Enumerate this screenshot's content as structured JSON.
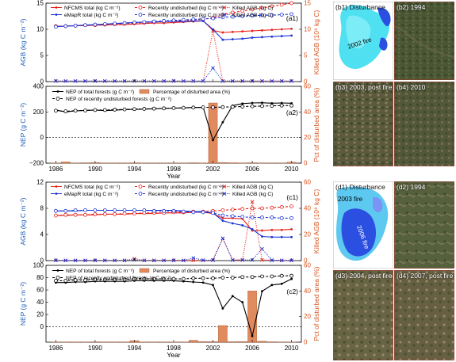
{
  "colors": {
    "nfcms": "#e8211b",
    "emapr": "#1b34d6",
    "nep": "#000000",
    "bar": "#e08a5d",
    "bar_edge": "#a8532b",
    "left_axis": "#1f5fb8",
    "right_axis": "#d9541e",
    "veg_dark": "#3d4a2c",
    "veg_light": "#7a7a55",
    "disturb_cyan": "#4fe0f2",
    "disturb_blue": "#2b4fe0",
    "edge_red": "#c0302a"
  },
  "chart_data": [
    {
      "id": "a1",
      "type": "line",
      "panel_label": "(a1)",
      "ylabel": "AGB (kg C m⁻²)",
      "ylabel_right": "Killed AGB (10⁹ kg C)",
      "xlim": [
        1985,
        2011
      ],
      "ylim": [
        0,
        15
      ],
      "yticks": [
        0,
        5,
        10,
        15
      ],
      "ylim_right": [
        0,
        15
      ],
      "yticks_right": [
        0,
        5,
        10,
        15
      ],
      "x": [
        1986,
        1987,
        1988,
        1989,
        1990,
        1991,
        1992,
        1993,
        1994,
        1995,
        1996,
        1997,
        1998,
        1999,
        2000,
        2001,
        2002,
        2003,
        2004,
        2005,
        2006,
        2007,
        2008,
        2009,
        2010
      ],
      "legend": [
        "NFCMS total (kg C m⁻²)",
        "Recently undisturbed (kg C m⁻²)",
        "Killed AGB (kg C)",
        "eMapR total (kg C m⁻²)",
        "Recently undisturbed (kg C m⁻²)",
        "Killed AGB (kg C)"
      ],
      "series": [
        {
          "name": "NFCMS total (kg C m⁻²)",
          "style": "solid",
          "color": "nfcms",
          "marker": "dot",
          "axis": "left",
          "values": [
            10.6,
            10.6,
            10.7,
            10.7,
            10.8,
            10.8,
            10.9,
            10.9,
            11.0,
            11.1,
            11.2,
            11.2,
            11.3,
            11.4,
            11.5,
            11.6,
            9.8,
            9.4,
            9.5,
            9.6,
            9.7,
            9.8,
            9.9,
            10.0,
            10.1
          ]
        },
        {
          "name": "Recently undisturbed (kg C m⁻²)",
          "style": "dashed",
          "color": "nfcms",
          "marker": "circle",
          "axis": "left",
          "values": [
            10.6,
            10.6,
            10.7,
            10.8,
            10.8,
            10.9,
            11.0,
            11.1,
            11.2,
            11.3,
            11.4,
            11.5,
            11.6,
            11.7,
            11.8,
            11.9,
            12.2,
            12.8,
            13.2,
            13.5,
            13.8,
            14.1,
            14.4,
            14.7,
            15.0
          ]
        },
        {
          "name": "Killed AGB (kg C)",
          "style": "dotted",
          "color": "nfcms",
          "marker": "x",
          "axis": "right",
          "values": [
            0.1,
            0.1,
            0.1,
            0.1,
            0.1,
            0.1,
            0.1,
            0.1,
            0.1,
            0.1,
            0.1,
            0.1,
            0.1,
            0.1,
            0.1,
            0.1,
            9.7,
            0.1,
            0.1,
            0.1,
            0.1,
            0.1,
            0.1,
            0.1,
            0.1
          ]
        },
        {
          "name": "eMapR total (kg C m⁻²)",
          "style": "solid",
          "color": "emapr",
          "marker": "dot",
          "axis": "left",
          "values": [
            10.5,
            10.6,
            10.7,
            10.8,
            10.9,
            11.0,
            11.1,
            11.2,
            11.3,
            11.4,
            11.4,
            11.5,
            11.5,
            11.5,
            11.6,
            11.6,
            10.0,
            8.0,
            8.1,
            8.2,
            8.4,
            8.5,
            8.6,
            8.7,
            8.8
          ]
        },
        {
          "name": "Recently undisturbed (kg C m⁻²)",
          "style": "dashed",
          "color": "emapr",
          "marker": "circle",
          "axis": "left",
          "values": [
            10.5,
            10.6,
            10.7,
            10.8,
            10.9,
            11.0,
            11.1,
            11.2,
            11.3,
            11.4,
            11.5,
            11.6,
            11.7,
            11.8,
            11.9,
            12.0,
            12.1,
            12.3,
            12.4,
            12.5,
            12.6,
            12.7,
            12.7,
            12.8,
            12.9
          ]
        },
        {
          "name": "Killed AGB (kg C)",
          "style": "dotted",
          "color": "emapr",
          "marker": "x",
          "axis": "right",
          "values": [
            0.1,
            0.1,
            0.1,
            0.1,
            0.1,
            0.1,
            0.1,
            0.1,
            0.1,
            0.1,
            0.1,
            0.1,
            0.1,
            0.1,
            0.1,
            0.1,
            2.6,
            0.1,
            0.1,
            0.1,
            0.1,
            0.1,
            0.1,
            0.1,
            0.1
          ]
        }
      ]
    },
    {
      "id": "a2",
      "type": "line",
      "panel_label": "(a2)",
      "ylabel": "NEP (g C m⁻²)",
      "ylabel_right": "Pct of disturbed area (%)",
      "xlim": [
        1985,
        2011
      ],
      "ylim": [
        -200,
        400
      ],
      "yticks": [
        -200,
        0,
        200,
        400
      ],
      "ylim_right": [
        0,
        60
      ],
      "yticks_right": [
        0,
        20,
        40,
        60
      ],
      "xlabel": "Year",
      "xticks": [
        1986,
        1990,
        1994,
        1998,
        2002,
        2006,
        2010
      ],
      "legend": [
        "NEP of total forests (g C m⁻²)",
        "Percentage of disturbed area (%)",
        "NEP of recently undisturbed forests (g C m⁻²)"
      ],
      "x": [
        1986,
        1987,
        1988,
        1989,
        1990,
        1991,
        1992,
        1993,
        1994,
        1995,
        1996,
        1997,
        1998,
        1999,
        2000,
        2001,
        2002,
        2003,
        2004,
        2005,
        2006,
        2007,
        2008,
        2009,
        2010
      ],
      "bars": {
        "name": "Percentage of disturbed area (%)",
        "axis": "right",
        "values": [
          0.2,
          1.0,
          0.2,
          0.3,
          0.5,
          0.2,
          0.2,
          0.2,
          0.3,
          0.2,
          0.2,
          0.2,
          0.2,
          0.2,
          0.3,
          0.2,
          47,
          0.5,
          0.3,
          0.2,
          0.3,
          0.2,
          0.2,
          0.2,
          0.8
        ]
      },
      "series": [
        {
          "name": "NEP of total forests (g C m⁻²)",
          "style": "solid",
          "color": "nep",
          "marker": "dot",
          "axis": "left",
          "values": [
            215,
            200,
            208,
            212,
            215,
            210,
            214,
            218,
            220,
            222,
            225,
            228,
            230,
            232,
            235,
            236,
            -20,
            120,
            250,
            265,
            270,
            272,
            268,
            270,
            268
          ]
        },
        {
          "name": "NEP of recently undisturbed forests (g C m⁻²)",
          "style": "dashed",
          "color": "nep",
          "marker": "circle",
          "axis": "left",
          "values": [
            210,
            205,
            210,
            212,
            215,
            215,
            218,
            220,
            222,
            224,
            226,
            228,
            230,
            232,
            234,
            236,
            236,
            238,
            240,
            242,
            244,
            246,
            248,
            250,
            250
          ]
        }
      ]
    },
    {
      "id": "c1",
      "type": "line",
      "panel_label": "(c1)",
      "ylabel": "AGB (kg C m⁻²)",
      "ylabel_right": "Killed AGB (10⁸ kg C)",
      "xlim": [
        1985,
        2011
      ],
      "ylim": [
        0,
        12
      ],
      "yticks": [
        0,
        4,
        8,
        12
      ],
      "ylim_right": [
        0,
        60
      ],
      "yticks_right": [
        0,
        20,
        40,
        60
      ],
      "x": [
        1986,
        1987,
        1988,
        1989,
        1990,
        1991,
        1992,
        1993,
        1994,
        1995,
        1996,
        1997,
        1998,
        1999,
        2000,
        2001,
        2002,
        2003,
        2004,
        2005,
        2006,
        2007,
        2008,
        2009,
        2010
      ],
      "legend": [
        "NFCMS total (kg C m⁻²)",
        "Recently undisturbed (kg C m⁻²)",
        "Killed AGB (kg C)",
        "eMapR total (kg C m⁻²)",
        "Recently undisturbed (kg C m⁻²)",
        "Killed AGB (kg C)"
      ],
      "series": [
        {
          "name": "NFCMS total (kg C m⁻²)",
          "style": "solid",
          "color": "nfcms",
          "marker": "dot",
          "axis": "left",
          "values": [
            6.9,
            6.9,
            7.0,
            7.0,
            7.0,
            7.1,
            7.1,
            7.1,
            7.2,
            7.2,
            7.2,
            7.3,
            7.3,
            7.3,
            7.4,
            7.4,
            7.2,
            6.5,
            6.5,
            6.4,
            4.6,
            4.6,
            4.7,
            4.7,
            4.8
          ]
        },
        {
          "name": "Recently undisturbed (kg C m⁻²)",
          "style": "dashed",
          "color": "nfcms",
          "marker": "circle",
          "axis": "left",
          "values": [
            6.9,
            7.0,
            7.0,
            7.0,
            7.1,
            7.1,
            7.1,
            7.2,
            7.2,
            7.3,
            7.3,
            7.3,
            7.4,
            7.4,
            7.5,
            7.5,
            7.6,
            7.7,
            7.8,
            7.9,
            8.0,
            8.0,
            8.1,
            8.2,
            8.3
          ]
        },
        {
          "name": "Killed AGB (kg C)",
          "style": "dotted",
          "color": "nfcms",
          "marker": "x",
          "axis": "right",
          "values": [
            0.2,
            0.2,
            0.2,
            0.2,
            0.2,
            0.2,
            0.2,
            0.2,
            1.5,
            0.2,
            0.2,
            0.2,
            0.2,
            0.2,
            0.2,
            0.2,
            0.5,
            17,
            0.5,
            0.5,
            45,
            0.5,
            0.3,
            0.2,
            0.2
          ]
        },
        {
          "name": "eMapR total (kg C m⁻²)",
          "style": "solid",
          "color": "emapr",
          "marker": "dot",
          "axis": "left",
          "values": [
            7.6,
            7.6,
            7.6,
            7.7,
            7.7,
            7.7,
            7.7,
            7.7,
            7.7,
            7.7,
            7.7,
            7.7,
            7.7,
            7.6,
            7.5,
            7.5,
            7.3,
            6.1,
            5.7,
            5.4,
            4.8,
            3.7,
            3.6,
            3.6,
            3.6
          ]
        },
        {
          "name": "Recently undisturbed (kg C m⁻²)",
          "style": "dashed",
          "color": "emapr",
          "marker": "circle",
          "axis": "left",
          "values": [
            7.6,
            7.6,
            7.7,
            7.7,
            7.7,
            7.7,
            7.7,
            7.7,
            7.7,
            7.7,
            7.6,
            7.6,
            7.6,
            7.5,
            7.4,
            7.4,
            7.3,
            6.9,
            6.8,
            6.7,
            6.6,
            6.6,
            6.6,
            6.5,
            6.5
          ]
        },
        {
          "name": "Killed AGB (kg C)",
          "style": "dotted",
          "color": "emapr",
          "marker": "x",
          "axis": "right",
          "values": [
            0.1,
            0.1,
            0.1,
            0.1,
            0.1,
            0.1,
            0.1,
            0.1,
            0.5,
            0.1,
            0.1,
            0.1,
            0.1,
            0.1,
            2.0,
            0.3,
            0.3,
            17,
            0.4,
            0.5,
            0.5,
            9.0,
            0.3,
            0.1,
            0.1
          ]
        }
      ]
    },
    {
      "id": "c2",
      "type": "line",
      "panel_label": "(c2)",
      "ylabel": "NEP (g C m⁻²)",
      "ylabel_right": "Pct of disturbed area (%)",
      "xlim": [
        1985,
        2011
      ],
      "ylim": [
        -25,
        100
      ],
      "yticks": [
        0,
        20,
        40,
        60,
        80,
        100
      ],
      "ylim_right": [
        0,
        60
      ],
      "yticks_right": [
        0,
        20,
        40,
        60
      ],
      "xlabel": "Year",
      "xticks": [
        1986,
        1990,
        1994,
        1998,
        2002,
        2006,
        2010
      ],
      "legend": [
        "NEP of total forests (g C m⁻²)",
        "Percentage of disturbed area (%)",
        "NEP of recently undisturbed forests (g C m⁻²)"
      ],
      "x": [
        1986,
        1987,
        1988,
        1989,
        1990,
        1991,
        1992,
        1993,
        1994,
        1995,
        1996,
        1997,
        1998,
        1999,
        2000,
        2001,
        2002,
        2003,
        2004,
        2005,
        2006,
        2007,
        2008,
        2009,
        2010
      ],
      "bars": {
        "name": "Percentage of disturbed area (%)",
        "axis": "right",
        "values": [
          0.2,
          0.2,
          0.2,
          0.2,
          0.3,
          0.2,
          0.2,
          0.2,
          1.2,
          0.2,
          0.2,
          0.2,
          0.2,
          0.2,
          1.5,
          0.5,
          0.5,
          13,
          0.4,
          0.5,
          40,
          0.8,
          0.3,
          0.2,
          0.2
        ]
      },
      "series": [
        {
          "name": "NEP of total forests (g C m⁻²)",
          "style": "solid",
          "color": "nep",
          "marker": "dot",
          "axis": "left",
          "values": [
            72,
            72,
            73,
            73,
            74,
            74,
            74,
            74,
            75,
            75,
            75,
            75,
            75,
            74,
            73,
            72,
            68,
            30,
            50,
            40,
            -15,
            58,
            68,
            70,
            78
          ]
        },
        {
          "name": "NEP of recently undisturbed forests (g C m⁻²)",
          "style": "dashed",
          "color": "nep",
          "marker": "circle",
          "axis": "left",
          "values": [
            75,
            75,
            76,
            76,
            77,
            77,
            77,
            77,
            78,
            78,
            78,
            78,
            78,
            78,
            79,
            79,
            79,
            80,
            80,
            81,
            81,
            82,
            82,
            83,
            83
          ]
        }
      ]
    }
  ],
  "image_panels": {
    "b1": {
      "label": "(b1) Disturbance",
      "fire_label": "2002 fire"
    },
    "b2": {
      "label": "(b2) 1994"
    },
    "b3": {
      "label": "(b3) 2003, post fire"
    },
    "b4": {
      "label": "(b4) 2010"
    },
    "d1": {
      "label": "(d1) Disturbance",
      "fire_label_a": "2003 fire",
      "fire_label_b": "2006 fire"
    },
    "d2": {
      "label": "(d2) 1994"
    },
    "d3": {
      "label": "(d3) 2004, post fire"
    },
    "d4": {
      "label": "(d4) 2007, post fire"
    }
  }
}
